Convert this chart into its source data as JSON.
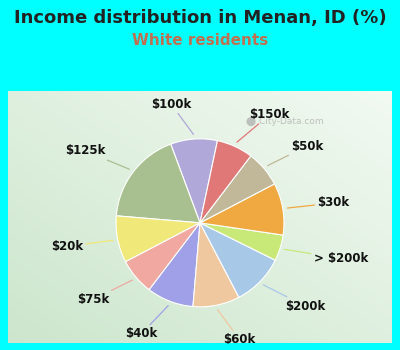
{
  "title": "Income distribution in Menan, ID (%)",
  "subtitle": "White residents",
  "bg_color": "#00FFFF",
  "chart_bg_colors": [
    "#f0faf5",
    "#c8ead8"
  ],
  "watermark": "City-Data.com",
  "labels": [
    "$100k",
    "$125k",
    "$20k",
    "$75k",
    "$40k",
    "$60k",
    "$200k",
    "> $200k",
    "$30k",
    "$50k",
    "$150k"
  ],
  "values": [
    9,
    18,
    9,
    7,
    9,
    9,
    10,
    5,
    10,
    7,
    7
  ],
  "colors": [
    "#b0a8d8",
    "#a8c090",
    "#f0e878",
    "#f0a8a0",
    "#a0a0e8",
    "#f0c8a0",
    "#a8c8e8",
    "#c8e878",
    "#f0a840",
    "#c0b898",
    "#e07878"
  ],
  "startangle": 78,
  "title_fontsize": 13,
  "subtitle_fontsize": 11,
  "label_fontsize": 8.5,
  "title_color": "#222222",
  "subtitle_color": "#c07050"
}
